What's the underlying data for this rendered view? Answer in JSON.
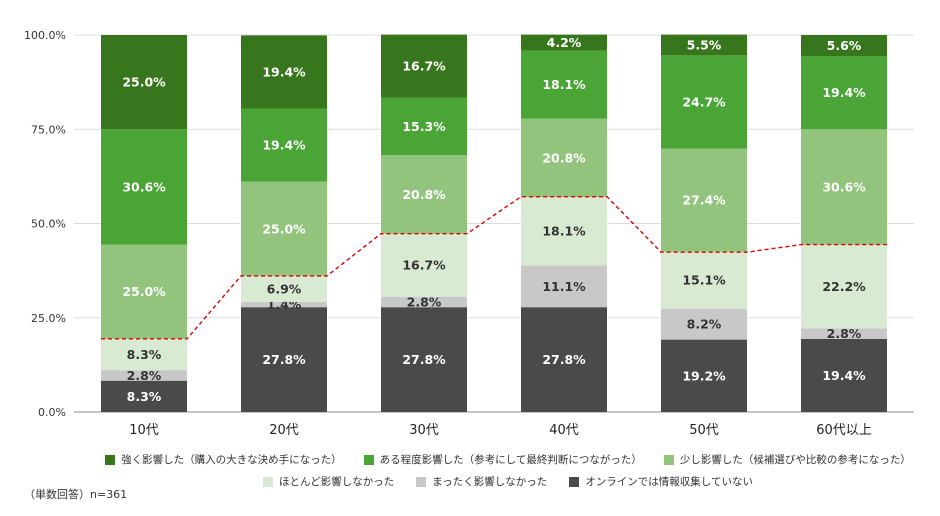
{
  "chart_data": {
    "type": "bar",
    "stacked": true,
    "categories": [
      "10代",
      "20代",
      "30代",
      "40代",
      "50代",
      "60代以上"
    ],
    "yticks": [
      "0.0%",
      "25.0%",
      "50.0%",
      "75.0%",
      "100.0%"
    ],
    "ylim": [
      0,
      100
    ],
    "grid": true,
    "legend_position": "bottom",
    "series": [
      {
        "name": "オンラインでは情報収集していない",
        "color": "#4a4a4a",
        "label_color": "#ffffff",
        "values": [
          8.3,
          27.8,
          27.8,
          27.8,
          19.2,
          19.4
        ],
        "labels": [
          "8.3%",
          "27.8%",
          "27.8%",
          "27.8%",
          "19.2%",
          "19.4%"
        ]
      },
      {
        "name": "まったく影響しなかった",
        "color": "#c8c8c8",
        "label_color": "#333333",
        "values": [
          2.8,
          1.4,
          2.8,
          11.1,
          8.2,
          2.8
        ],
        "labels": [
          "2.8%",
          "1.4%",
          "2.8%",
          "11.1%",
          "8.2%",
          "2.8%"
        ]
      },
      {
        "name": "ほとんど影響しなかった",
        "color": "#d9ead3",
        "label_color": "#333333",
        "values": [
          8.3,
          6.9,
          16.7,
          18.1,
          15.1,
          22.2
        ],
        "labels": [
          "8.3%",
          "6.9%",
          "16.7%",
          "18.1%",
          "15.1%",
          "22.2%"
        ]
      },
      {
        "name": "少し影響した（候補選びや比較の参考になった）",
        "color": "#93c47d",
        "label_color": "#ffffff",
        "values": [
          25.0,
          25.0,
          20.8,
          20.8,
          27.4,
          30.6
        ],
        "labels": [
          "25.0%",
          "25.0%",
          "20.8%",
          "20.8%",
          "27.4%",
          "30.6%"
        ]
      },
      {
        "name": "ある程度影響した（参考にして最終判断につながった）",
        "color": "#4aa436",
        "label_color": "#ffffff",
        "values": [
          30.6,
          19.4,
          15.3,
          18.1,
          24.7,
          19.4
        ],
        "labels": [
          "30.6%",
          "19.4%",
          "15.3%",
          "18.1%",
          "24.7%",
          "19.4%"
        ]
      },
      {
        "name": "強く影響した（購入の大きな決め手になった）",
        "color": "#38761d",
        "label_color": "#ffffff",
        "values": [
          25.0,
          19.4,
          16.7,
          4.2,
          5.5,
          5.6
        ],
        "labels": [
          "25.0%",
          "19.4%",
          "16.7%",
          "4.2%",
          "5.5%",
          "5.6%"
        ]
      }
    ],
    "threshold_line": {
      "color": "#dd0000",
      "values": [
        19.4,
        36.1,
        47.3,
        57.1,
        42.4,
        44.4
      ]
    }
  },
  "legend": {
    "rows": [
      [
        {
          "label": "強く影響した（購入の大きな決め手になった）",
          "color": "#38761d"
        },
        {
          "label": "ある程度影響した（参考にして最終判断につながった）",
          "color": "#4aa436"
        },
        {
          "label": "少し影響した（候補選びや比較の参考になった）",
          "color": "#93c47d"
        }
      ],
      [
        {
          "label": "ほとんど影響しなかった",
          "color": "#d9ead3"
        },
        {
          "label": "まったく影響しなかった",
          "color": "#c8c8c8"
        },
        {
          "label": "オンラインでは情報収集していない",
          "color": "#4a4a4a"
        }
      ]
    ]
  },
  "note": "（単数回答）n=361"
}
